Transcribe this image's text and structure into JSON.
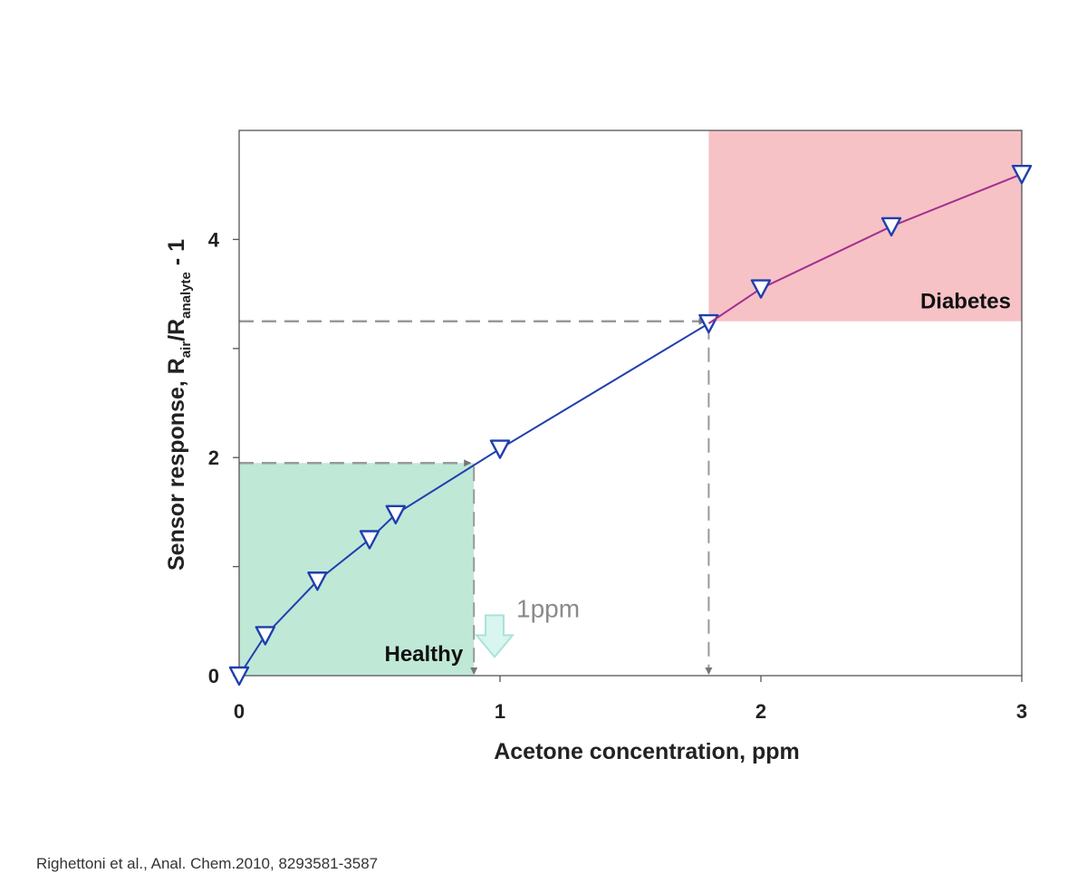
{
  "chart_data": {
    "type": "line",
    "title": "",
    "xlabel": "Acetone concentration, ppm",
    "ylabel": {
      "prefix": "Sensor response, R",
      "sub1": "air",
      "mid": "/R",
      "sub2": "analyte",
      "suffix": " - 1"
    },
    "xlim": [
      0,
      3
    ],
    "ylim": [
      0,
      5
    ],
    "xticks": [
      0,
      1,
      2,
      3
    ],
    "xtick_labels": [
      "0",
      "1",
      "2",
      "3"
    ],
    "yticks": [
      0,
      1,
      2,
      3,
      4
    ],
    "ytick_labels": [
      "0",
      "",
      "2",
      "",
      "4"
    ],
    "grid": false,
    "series": [
      {
        "color": "#1f3fae",
        "marker": "open-triangle-down",
        "x": [
          0,
          0.1,
          0.3,
          0.5,
          0.6,
          0.9,
          1.0,
          1.8
        ],
        "y": [
          0,
          0.37,
          0.87,
          1.25,
          1.48,
          1.93,
          2.08,
          3.23
        ],
        "markers_x": [
          0,
          0.1,
          0.3,
          0.5,
          0.6,
          1.0,
          1.8
        ],
        "markers_y": [
          0,
          0.37,
          0.87,
          1.25,
          1.48,
          2.08,
          3.23
        ]
      },
      {
        "color": "#a52d8f",
        "marker": "open-triangle-down",
        "x": [
          1.8,
          2.0,
          2.5,
          3.0
        ],
        "y": [
          3.23,
          3.55,
          4.12,
          4.6
        ],
        "markers_x": [
          2.0,
          2.5,
          3.0
        ],
        "markers_y": [
          3.55,
          4.12,
          4.6
        ]
      }
    ],
    "regions": [
      {
        "label": "Healthy",
        "x": [
          0,
          0.9
        ],
        "y": [
          0,
          1.95
        ],
        "color": "#bfe8d7"
      },
      {
        "label": "Diabetes",
        "x": [
          1.8,
          3.0
        ],
        "y": [
          3.25,
          5.0
        ],
        "color": "#f6c2c6"
      }
    ],
    "reference_lines": [
      {
        "x": 0.9,
        "y": 1.95
      },
      {
        "x": 1.8,
        "y": 3.25
      }
    ],
    "annotations": [
      {
        "text": "1ppm",
        "x": 1.0,
        "y": 0.62
      }
    ]
  },
  "citation": "Righettoni et al., Anal. Chem.2010, 8293581-3587"
}
